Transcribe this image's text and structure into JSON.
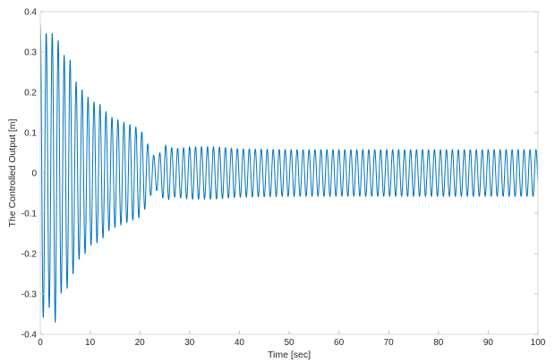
{
  "chart_data": {
    "type": "line",
    "title": "",
    "xlabel": "Time [sec]",
    "ylabel": "The Controlled Output [m]",
    "xlim": [
      0,
      100
    ],
    "ylim": [
      -0.4,
      0.4
    ],
    "xticks": [
      0,
      10,
      20,
      30,
      40,
      50,
      60,
      70,
      80,
      90,
      100
    ],
    "yticks": [
      -0.4,
      -0.3,
      -0.2,
      -0.1,
      0,
      0.1,
      0.2,
      0.3,
      0.4
    ],
    "grid": false,
    "line_color": "#0072BD",
    "series": [
      {
        "oscillation_period_sec": 1.2,
        "envelope": {
          "t": [
            0,
            1,
            2,
            3,
            4,
            5,
            6,
            7,
            8,
            9,
            10,
            12,
            14,
            16,
            18,
            20,
            21,
            22,
            23,
            24,
            25,
            27,
            30,
            35,
            40,
            50,
            100
          ],
          "amplitude": [
            0.37,
            0.35,
            0.33,
            0.37,
            0.3,
            0.29,
            0.28,
            0.23,
            0.21,
            0.2,
            0.18,
            0.17,
            0.14,
            0.13,
            0.12,
            0.11,
            0.09,
            0.06,
            0.04,
            0.05,
            0.07,
            0.06,
            0.065,
            0.065,
            0.06,
            0.058,
            0.058
          ]
        }
      }
    ]
  }
}
